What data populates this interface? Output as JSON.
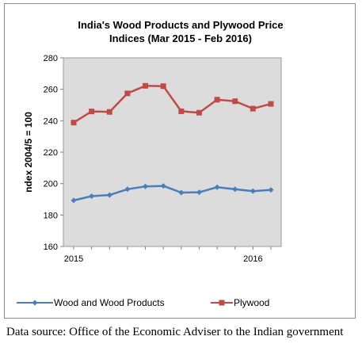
{
  "chart_data": {
    "type": "line",
    "title_line1": "India's Wood Products and Plywood Price",
    "title_line2": "Indices (Mar 2015 - Feb 2016)",
    "ylabel": "ndex 2004/5 = 100",
    "xlabel": "",
    "ylim": [
      160,
      280
    ],
    "yticks": [
      160,
      180,
      200,
      220,
      240,
      260,
      280
    ],
    "x_labels": [
      {
        "index": 0,
        "label": "2015"
      },
      {
        "index": 10,
        "label": "2016"
      }
    ],
    "n_points": 12,
    "series": [
      {
        "name": "Wood and Wood Products",
        "color": "#4a7ebb",
        "marker": "diamond",
        "values": [
          189.3,
          192.0,
          192.7,
          196.4,
          198.2,
          198.5,
          194.3,
          194.5,
          197.7,
          196.4,
          195.2,
          196.0
        ]
      },
      {
        "name": "Plywood",
        "color": "#be4b48",
        "marker": "square",
        "values": [
          238.8,
          245.9,
          245.6,
          257.4,
          262.2,
          262.0,
          246.0,
          245.1,
          253.4,
          252.4,
          247.7,
          250.7
        ]
      }
    ],
    "grid": false,
    "legend_position": "bottom"
  },
  "caption": "Data source: Office of the Economic Adviser to the Indian government"
}
